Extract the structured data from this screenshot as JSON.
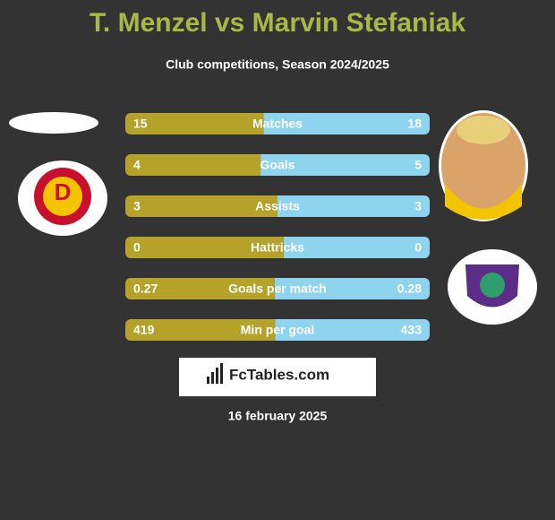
{
  "header": {
    "title": "T. Menzel vs Marvin Stefaniak",
    "subtitle": "Club competitions, Season 2024/2025"
  },
  "rows": [
    {
      "label": "Matches",
      "left": 15,
      "right": 18
    },
    {
      "label": "Goals",
      "left": 4,
      "right": 5
    },
    {
      "label": "Assists",
      "left": 3,
      "right": 3
    },
    {
      "label": "Hattricks",
      "left": 0,
      "right": 0
    },
    {
      "label": "Goals per match",
      "left": 0.27,
      "right": 0.28
    },
    {
      "label": "Min per goal",
      "left": 419,
      "right": 433
    }
  ],
  "colors": {
    "left": "#b4a22a",
    "right": "#8fd4ee"
  },
  "brand": "FcTables.com",
  "date": "16 february 2025"
}
